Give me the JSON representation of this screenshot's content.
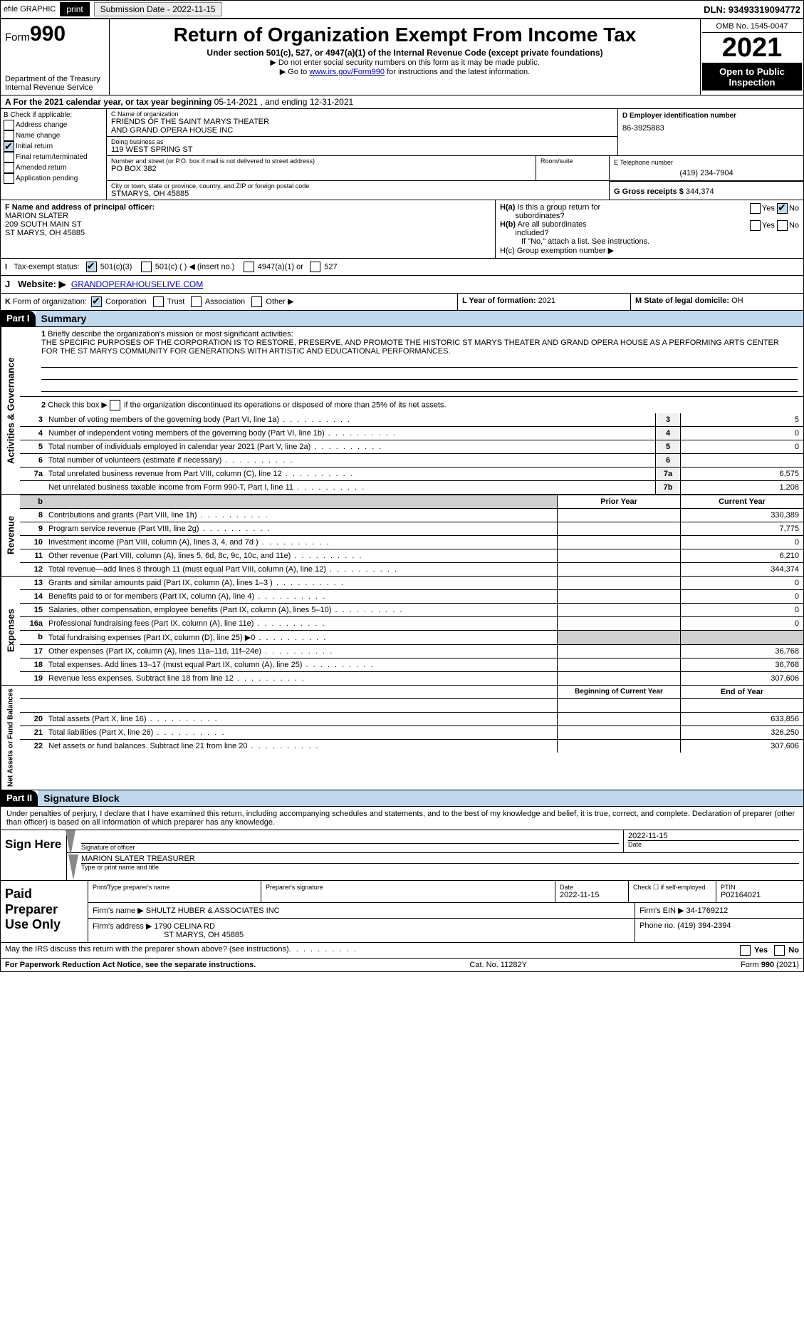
{
  "topbar": {
    "efile": "efile GRAPHIC",
    "print": "print",
    "sub_label": "Submission Date - 2022-11-15",
    "dln": "DLN: 93493319094772"
  },
  "header": {
    "form_prefix": "Form",
    "form_num": "990",
    "dept": "Department of the Treasury",
    "irs": "Internal Revenue Service",
    "title": "Return of Organization Exempt From Income Tax",
    "sub": "Under section 501(c), 527, or 4947(a)(1) of the Internal Revenue Code (except private foundations)",
    "note1": "▶ Do not enter social security numbers on this form as it may be made public.",
    "note2_pre": "▶ Go to ",
    "note2_link": "www.irs.gov/Form990",
    "note2_post": " for instructions and the latest information.",
    "omb": "OMB No. 1545-0047",
    "year": "2021",
    "open": "Open to Public Inspection"
  },
  "sectionA": {
    "label_pre": "A For the 2021 calendar year, or tax year beginning ",
    "begin": "05-14-2021",
    "mid": " , and ending ",
    "end": "12-31-2021"
  },
  "colB": {
    "title": "B Check if applicable:",
    "items": [
      {
        "label": "Address change",
        "checked": false
      },
      {
        "label": "Name change",
        "checked": false
      },
      {
        "label": "Initial return",
        "checked": true
      },
      {
        "label": "Final return/terminated",
        "checked": false
      },
      {
        "label": "Amended return",
        "checked": false
      },
      {
        "label": "Application pending",
        "checked": false
      }
    ]
  },
  "colC": {
    "name_label": "C Name of organization",
    "name1": "FRIENDS OF THE SAINT MARYS THEATER",
    "name2": "AND GRAND OPERA HOUSE INC",
    "dba_label": "Doing business as",
    "dba": "119 WEST SPRING ST",
    "addr_label": "Number and street (or P.O. box if mail is not delivered to street address)",
    "addr": "PO BOX 382",
    "room_label": "Room/suite",
    "city_label": "City or town, state or province, country, and ZIP or foreign postal code",
    "city": "STMARYS, OH  45885"
  },
  "colD": {
    "d_label": "D Employer identification number",
    "ein": "86-3925883",
    "e_label": "E Telephone number",
    "phone": "(419) 234-7904",
    "g_label": "G Gross receipts $",
    "gross": "344,374"
  },
  "rowF": {
    "f_label": "F Name and address of principal officer:",
    "name": "MARION SLATER",
    "addr1": "209 SOUTH MAIN ST",
    "addr2": "ST MARYS, OH  45885"
  },
  "rowH": {
    "ha": "H(a) Is this a group return for subordinates?",
    "hb": "H(b) Are all subordinates included?",
    "hb_note": "If \"No,\" attach a list. See instructions.",
    "hc": "H(c) Group exemption number ▶",
    "yes": "Yes",
    "no": "No"
  },
  "rowI": {
    "label": "I Tax-exempt status:",
    "opt1": "501(c)(3)",
    "opt2": "501(c) (   ) ◀ (insert no.)",
    "opt3": "4947(a)(1) or",
    "opt4": "527"
  },
  "rowJ": {
    "label": "J Website: ▶",
    "url": "GRANDOPERAHOUSELIVE.COM"
  },
  "rowK": {
    "label": "K Form of organization:",
    "corp": "Corporation",
    "trust": "Trust",
    "assoc": "Association",
    "other": "Other ▶"
  },
  "rowL": {
    "label": "L Year of formation: ",
    "val": "2021"
  },
  "rowM": {
    "label": "M State of legal domicile: ",
    "val": "OH"
  },
  "part1": {
    "title": "Part I",
    "name": "Summary",
    "q1": "1 Briefly describe the organization's mission or most significant activities:",
    "mission": "THE SPECIFIC PURPOSES OF THE CORPORATION IS TO RESTORE, PRESERVE, AND PROMOTE THE HISTORIC ST MARYS THEATER AND GRAND OPERA HOUSE AS A PERFORMING ARTS CENTER FOR THE ST MARYS COMMUNITY FOR GENERATIONS WITH ARTISTIC AND EDUCATIONAL PERFORMANCES.",
    "q2": "Check this box ▶ ☐ if the organization discontinued its operations or disposed of more than 25% of its net assets."
  },
  "vlabels": {
    "gov": "Activities & Governance",
    "rev": "Revenue",
    "exp": "Expenses",
    "net": "Net Assets or Fund Balances"
  },
  "gov_lines": [
    {
      "n": "3",
      "d": "Number of voting members of the governing body (Part VI, line 1a)",
      "box": "3",
      "v": "5"
    },
    {
      "n": "4",
      "d": "Number of independent voting members of the governing body (Part VI, line 1b)",
      "box": "4",
      "v": "0"
    },
    {
      "n": "5",
      "d": "Total number of individuals employed in calendar year 2021 (Part V, line 2a)",
      "box": "5",
      "v": "0"
    },
    {
      "n": "6",
      "d": "Total number of volunteers (estimate if necessary)",
      "box": "6",
      "v": ""
    },
    {
      "n": "7a",
      "d": "Total unrelated business revenue from Part VIII, column (C), line 12",
      "box": "7a",
      "v": "6,575"
    },
    {
      "n": "",
      "d": "Net unrelated business taxable income from Form 990-T, Part I, line 11",
      "box": "7b",
      "v": "1,208"
    }
  ],
  "col_headers": {
    "prior": "Prior Year",
    "curr": "Current Year",
    "begin": "Beginning of Current Year",
    "end": "End of Year"
  },
  "rev_lines": [
    {
      "n": "8",
      "d": "Contributions and grants (Part VIII, line 1h)",
      "p": "",
      "c": "330,389"
    },
    {
      "n": "9",
      "d": "Program service revenue (Part VIII, line 2g)",
      "p": "",
      "c": "7,775"
    },
    {
      "n": "10",
      "d": "Investment income (Part VIII, column (A), lines 3, 4, and 7d )",
      "p": "",
      "c": "0"
    },
    {
      "n": "11",
      "d": "Other revenue (Part VIII, column (A), lines 5, 6d, 8c, 9c, 10c, and 11e)",
      "p": "",
      "c": "6,210"
    },
    {
      "n": "12",
      "d": "Total revenue—add lines 8 through 11 (must equal Part VIII, column (A), line 12)",
      "p": "",
      "c": "344,374"
    }
  ],
  "exp_lines": [
    {
      "n": "13",
      "d": "Grants and similar amounts paid (Part IX, column (A), lines 1–3 )",
      "p": "",
      "c": "0"
    },
    {
      "n": "14",
      "d": "Benefits paid to or for members (Part IX, column (A), line 4)",
      "p": "",
      "c": "0"
    },
    {
      "n": "15",
      "d": "Salaries, other compensation, employee benefits (Part IX, column (A), lines 5–10)",
      "p": "",
      "c": "0"
    },
    {
      "n": "16a",
      "d": "Professional fundraising fees (Part IX, column (A), line 11e)",
      "p": "",
      "c": "0"
    },
    {
      "n": "b",
      "d": "Total fundraising expenses (Part IX, column (D), line 25) ▶0",
      "p": "grey",
      "c": "grey"
    },
    {
      "n": "17",
      "d": "Other expenses (Part IX, column (A), lines 11a–11d, 11f–24e)",
      "p": "",
      "c": "36,768"
    },
    {
      "n": "18",
      "d": "Total expenses. Add lines 13–17 (must equal Part IX, column (A), line 25)",
      "p": "",
      "c": "36,768"
    },
    {
      "n": "19",
      "d": "Revenue less expenses. Subtract line 18 from line 12",
      "p": "",
      "c": "307,606"
    }
  ],
  "net_lines": [
    {
      "n": "20",
      "d": "Total assets (Part X, line 16)",
      "p": "",
      "c": "633,856"
    },
    {
      "n": "21",
      "d": "Total liabilities (Part X, line 26)",
      "p": "",
      "c": "326,250"
    },
    {
      "n": "22",
      "d": "Net assets or fund balances. Subtract line 21 from line 20",
      "p": "",
      "c": "307,606"
    }
  ],
  "part2": {
    "title": "Part II",
    "name": "Signature Block",
    "decl": "Under penalties of perjury, I declare that I have examined this return, including accompanying schedules and statements, and to the best of my knowledge and belief, it is true, correct, and complete. Declaration of preparer (other than officer) is based on all information of which preparer has any knowledge."
  },
  "sign": {
    "label": "Sign Here",
    "sig_label": "Signature of officer",
    "date": "2022-11-15",
    "date_label": "Date",
    "name": "MARION SLATER TREASURER",
    "name_label": "Type or print name and title"
  },
  "paid": {
    "label": "Paid Preparer Use Only",
    "h1": "Print/Type preparer's name",
    "h2": "Preparer's signature",
    "h3": "Date",
    "date": "2022-11-15",
    "h4": "Check ☐ if self-employed",
    "h5": "PTIN",
    "ptin": "P02164021",
    "firm_label": "Firm's name ▶",
    "firm": "SHULTZ HUBER & ASSOCIATES INC",
    "ein_label": "Firm's EIN ▶",
    "ein": "34-1769212",
    "addr_label": "Firm's address ▶",
    "addr1": "1790 CELINA RD",
    "addr2": "ST MARYS, OH  45885",
    "phone_label": "Phone no.",
    "phone": "(419) 394-2394"
  },
  "footer": {
    "may": "May the IRS discuss this return with the preparer shown above? (see instructions)",
    "yes": "Yes",
    "no": "No",
    "pra": "For Paperwork Reduction Act Notice, see the separate instructions.",
    "cat": "Cat. No. 11282Y",
    "form": "Form 990 (2021)"
  }
}
